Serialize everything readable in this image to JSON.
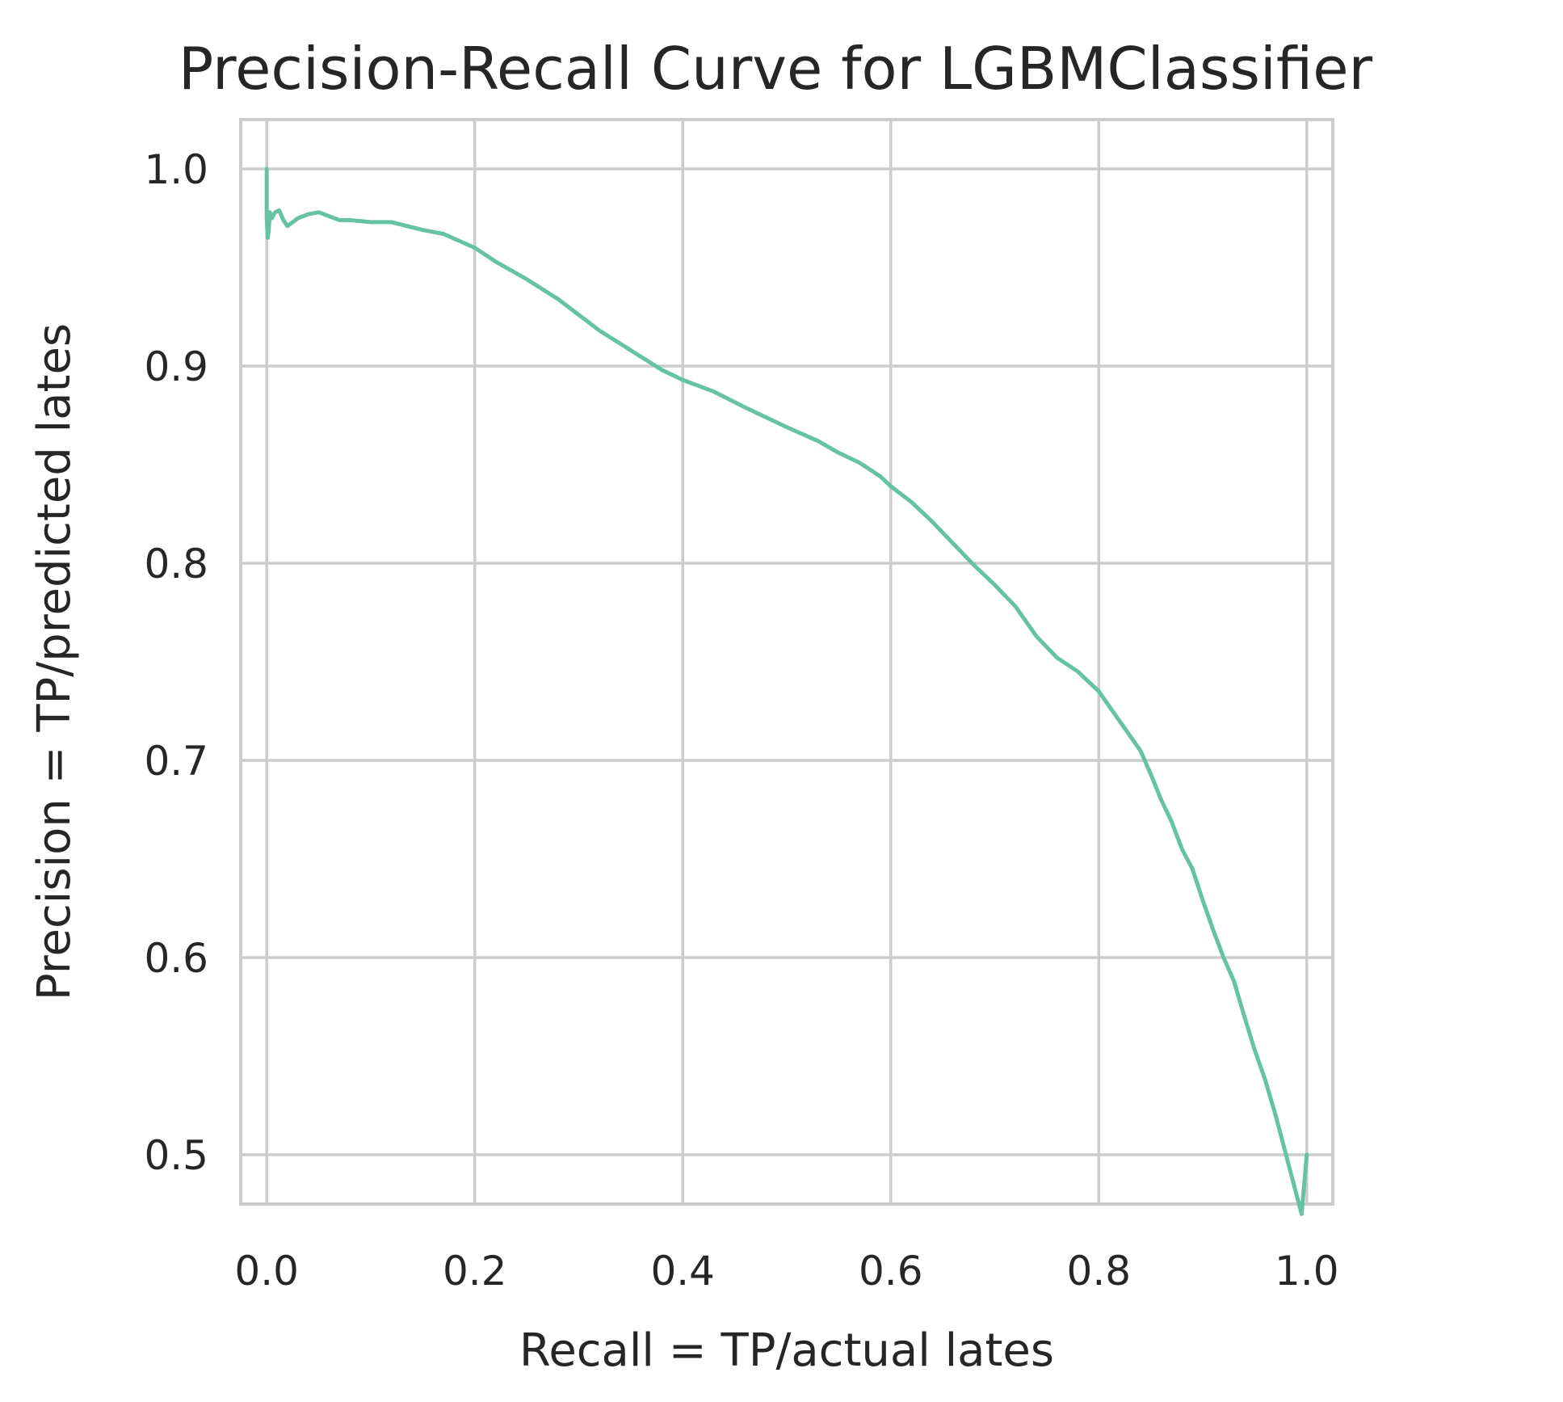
{
  "chart_data": {
    "type": "line",
    "title": "Precision-Recall Curve for LGBMClassifier",
    "xlabel": "Recall = TP/actual lates",
    "ylabel": "Precision = TP/predicted lates",
    "xlim": [
      -0.025,
      1.025
    ],
    "ylim": [
      0.475,
      1.025
    ],
    "grid": true,
    "x_ticks": [
      0.0,
      0.2,
      0.4,
      0.6,
      0.8,
      1.0
    ],
    "x_tick_labels": [
      "0.0",
      "0.2",
      "0.4",
      "0.6",
      "0.8",
      "1.0"
    ],
    "y_ticks": [
      0.5,
      0.6,
      0.7,
      0.8,
      0.9,
      1.0
    ],
    "y_tick_labels": [
      "0.5",
      "0.6",
      "0.7",
      "0.8",
      "0.9",
      "1.0"
    ],
    "series_color": "#66c2a5",
    "series": [
      {
        "x": [
          0.0,
          0.0,
          0.001,
          0.002,
          0.003,
          0.005,
          0.008,
          0.012,
          0.016,
          0.02,
          0.025,
          0.03,
          0.04,
          0.05,
          0.06,
          0.07,
          0.08,
          0.1,
          0.12,
          0.15,
          0.17,
          0.2,
          0.22,
          0.25,
          0.28,
          0.3,
          0.32,
          0.35,
          0.38,
          0.4,
          0.43,
          0.46,
          0.5,
          0.53,
          0.55,
          0.57,
          0.59,
          0.6,
          0.62,
          0.64,
          0.66,
          0.68,
          0.7,
          0.72,
          0.74,
          0.76,
          0.78,
          0.8,
          0.82,
          0.84,
          0.85,
          0.86,
          0.87,
          0.88,
          0.89,
          0.9,
          0.91,
          0.92,
          0.93,
          0.94,
          0.95,
          0.96,
          0.97,
          0.98,
          0.99,
          0.995,
          1.0
        ],
        "y": [
          1.0,
          0.975,
          0.965,
          0.97,
          0.978,
          0.975,
          0.978,
          0.979,
          0.974,
          0.971,
          0.973,
          0.975,
          0.977,
          0.978,
          0.976,
          0.974,
          0.974,
          0.973,
          0.973,
          0.969,
          0.967,
          0.96,
          0.953,
          0.944,
          0.934,
          0.926,
          0.918,
          0.908,
          0.898,
          0.893,
          0.887,
          0.879,
          0.869,
          0.862,
          0.856,
          0.851,
          0.844,
          0.839,
          0.831,
          0.821,
          0.81,
          0.799,
          0.789,
          0.778,
          0.763,
          0.752,
          0.745,
          0.735,
          0.72,
          0.705,
          0.693,
          0.68,
          0.669,
          0.655,
          0.645,
          0.629,
          0.614,
          0.6,
          0.588,
          0.57,
          0.553,
          0.538,
          0.52,
          0.5,
          0.48,
          0.47,
          0.5
        ]
      }
    ]
  }
}
